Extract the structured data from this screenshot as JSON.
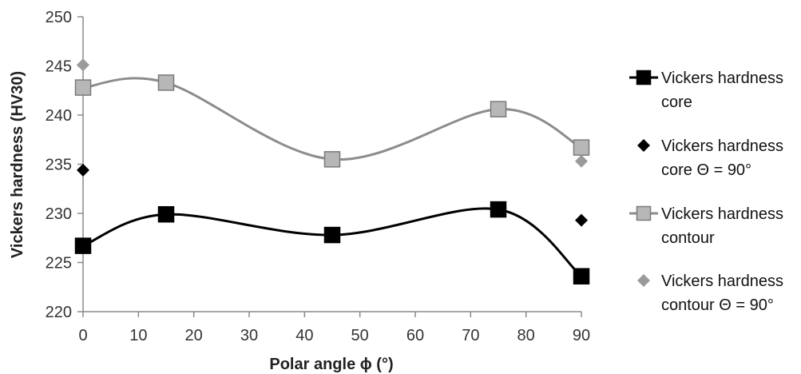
{
  "chart_data": {
    "type": "line",
    "xlabel": "Polar angle ϕ (°)",
    "ylabel": "Vickers hardness (HV30)",
    "xlim": [
      0,
      90
    ],
    "ylim": [
      220,
      250
    ],
    "xticks": [
      0,
      10,
      20,
      30,
      40,
      50,
      60,
      70,
      80,
      90
    ],
    "yticks": [
      220,
      225,
      230,
      235,
      240,
      245,
      250
    ],
    "grid": false,
    "legend_position": "right",
    "series": [
      {
        "name": "Vickers hardness core",
        "legend_lines": [
          "Vickers hardness",
          "core"
        ],
        "style": "smooth-line-square",
        "color": "#000000",
        "x": [
          0,
          15,
          45,
          75,
          90
        ],
        "y": [
          226.7,
          229.9,
          227.8,
          230.4,
          223.6
        ]
      },
      {
        "name": "Vickers hardness core Θ = 90°",
        "legend_lines": [
          "Vickers hardness",
          "core  Θ = 90°"
        ],
        "style": "diamond",
        "color": "#000000",
        "x": [
          0,
          90
        ],
        "y": [
          234.4,
          229.3
        ]
      },
      {
        "name": "Vickers hardness contour",
        "legend_lines": [
          "Vickers hardness",
          "contour"
        ],
        "style": "smooth-line-square",
        "color": "#8c8c8c",
        "fill": "#b7b7b7",
        "x": [
          0,
          15,
          45,
          75,
          90
        ],
        "y": [
          242.8,
          243.3,
          235.5,
          240.6,
          236.7
        ]
      },
      {
        "name": "Vickers hardness contour Θ = 90°",
        "legend_lines": [
          "Vickers hardness",
          "contour  Θ = 90°"
        ],
        "style": "diamond",
        "color": "#9a9a9a",
        "x": [
          0,
          90
        ],
        "y": [
          245.1,
          235.3
        ]
      }
    ]
  }
}
